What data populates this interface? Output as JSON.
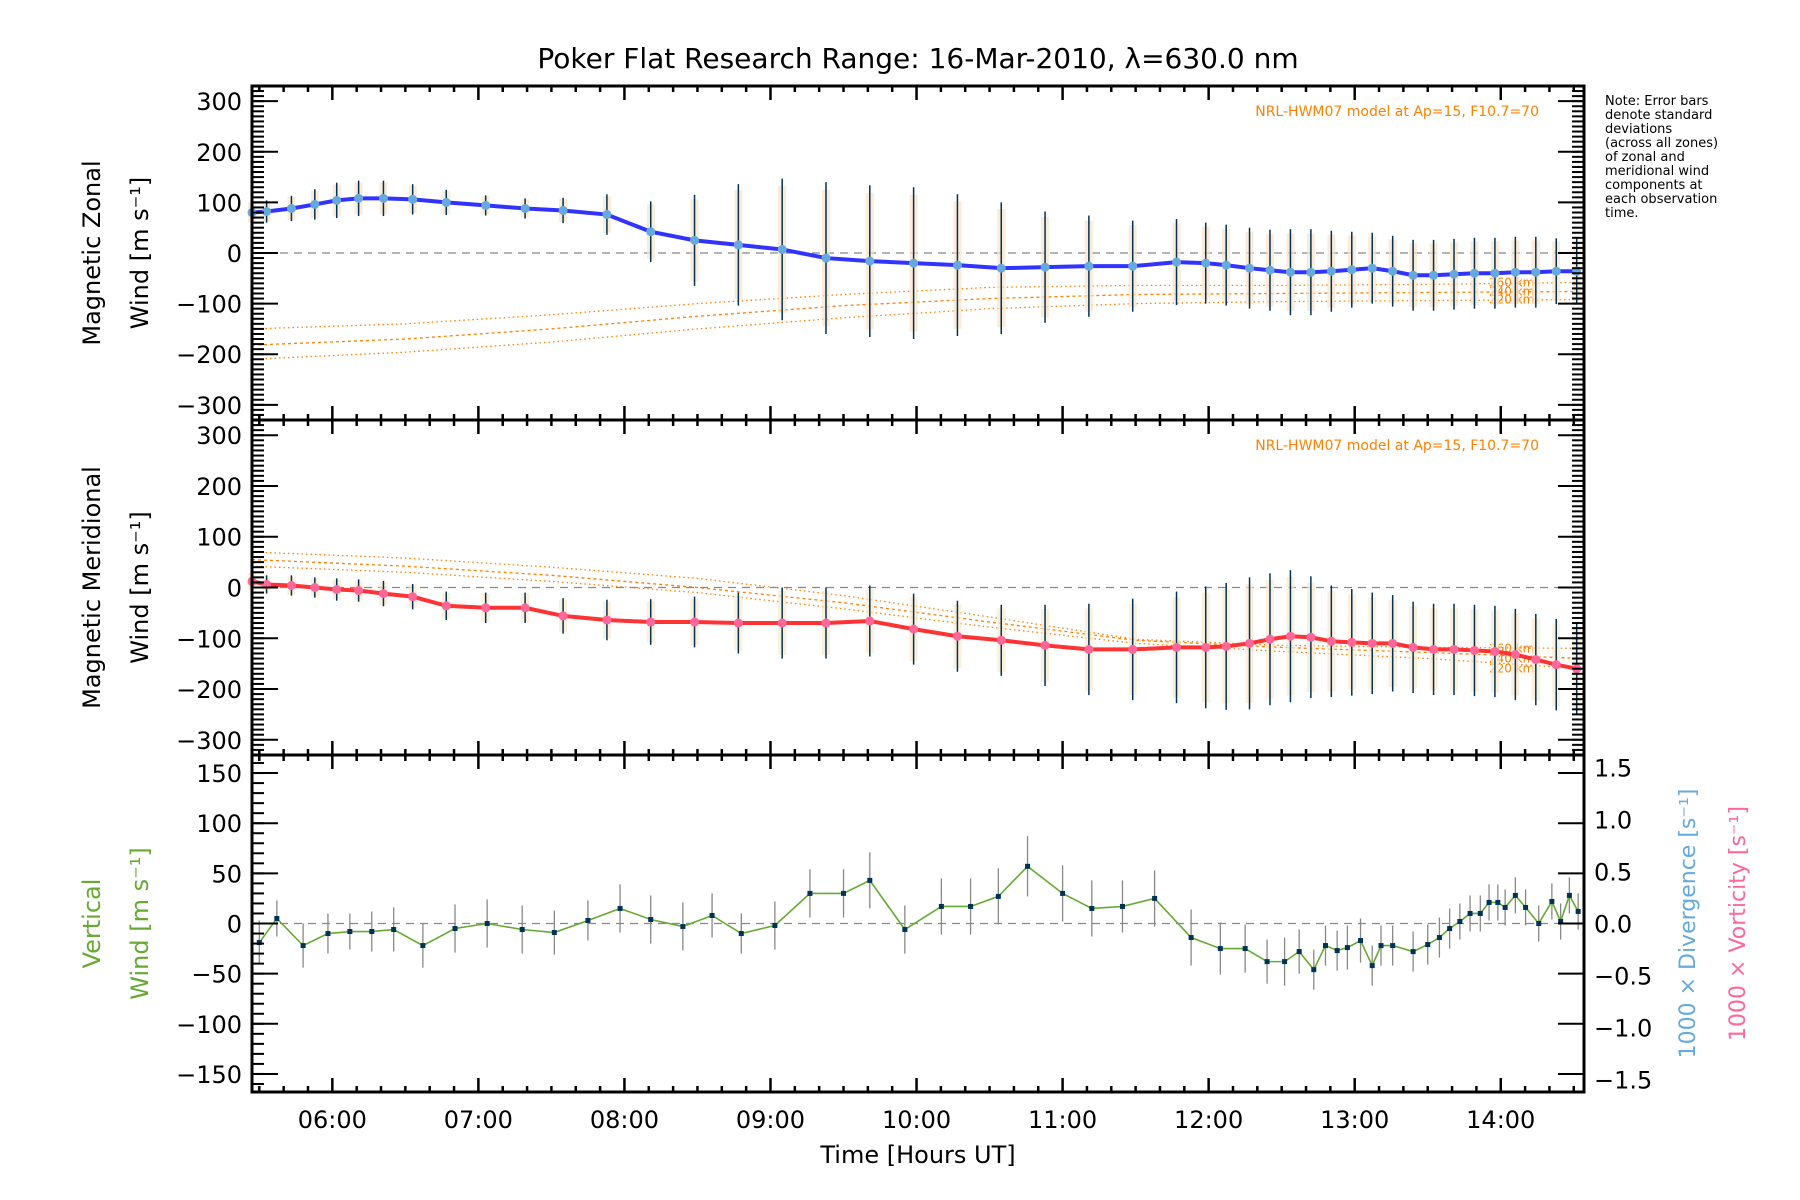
{
  "chart_data": {
    "type": "line",
    "title": "Poker Flat Research Range: 16-Mar-2010, λ=630.0 nm",
    "xlabel": "Time [Hours UT]",
    "xlim": [
      5.45,
      14.57
    ],
    "x_ticks": [
      {
        "value": 6,
        "label": "06:00"
      },
      {
        "value": 7,
        "label": "07:00"
      },
      {
        "value": 8,
        "label": "08:00"
      },
      {
        "value": 9,
        "label": "09:00"
      },
      {
        "value": 10,
        "label": "10:00"
      },
      {
        "value": 11,
        "label": "11:00"
      },
      {
        "value": 12,
        "label": "12:00"
      },
      {
        "value": 13,
        "label": "13:00"
      },
      {
        "value": 14,
        "label": "14:00"
      }
    ],
    "note": "Note: Error bars\ndenote standard\ndeviations\n(across all zones)\nof zonal and\nmeridional wind\ncomponents at\neach observation\ntime.",
    "panels": [
      {
        "id": "zonal",
        "ylabel_line1": "Magnetic Zonal",
        "ylabel_line2": "Wind [m s⁻¹]",
        "ylim": [
          -330,
          330
        ],
        "yticks": [
          -300,
          -200,
          -100,
          0,
          100,
          200,
          300
        ],
        "model_label": "NRL-HWM07 model at Ap=15, F10.7=70",
        "series": {
          "name": "Zonal wind",
          "color": "#3333ff",
          "x": [
            5.45,
            5.55,
            5.72,
            5.88,
            6.03,
            6.18,
            6.35,
            6.55,
            6.78,
            7.05,
            7.32,
            7.58,
            7.88,
            8.18,
            8.48,
            8.78,
            9.08,
            9.38,
            9.68,
            9.98,
            10.28,
            10.58,
            10.88,
            11.18,
            11.48,
            11.78,
            11.98,
            12.12,
            12.28,
            12.42,
            12.56,
            12.7,
            12.84,
            12.98,
            13.12,
            13.26,
            13.4,
            13.54,
            13.68,
            13.82,
            13.96,
            14.1,
            14.24,
            14.38,
            14.52
          ],
          "values": [
            80,
            82,
            88,
            96,
            104,
            108,
            108,
            106,
            100,
            94,
            88,
            84,
            76,
            42,
            25,
            16,
            7,
            -10,
            -16,
            -20,
            -24,
            -30,
            -28,
            -26,
            -26,
            -18,
            -20,
            -24,
            -30,
            -34,
            -38,
            -38,
            -36,
            -33,
            -30,
            -36,
            -44,
            -44,
            -42,
            -40,
            -40,
            -38,
            -38,
            -36,
            -36
          ],
          "errors": [
            22,
            22,
            25,
            30,
            35,
            35,
            35,
            30,
            25,
            20,
            20,
            25,
            40,
            60,
            90,
            120,
            140,
            150,
            150,
            150,
            140,
            130,
            110,
            100,
            90,
            85,
            80,
            80,
            80,
            80,
            85,
            85,
            80,
            75,
            70,
            70,
            70,
            70,
            70,
            70,
            70,
            70,
            70,
            65,
            65
          ]
        },
        "model_lines": [
          {
            "name": "260 km",
            "x": [
              5.45,
              6.5,
              7.5,
              8.5,
              9.5,
              10.5,
              11.5,
              12.5,
              13.5,
              14.57
            ],
            "values": [
              -150,
              -140,
              -122,
              -100,
              -82,
              -68,
              -64,
              -64,
              -62,
              -58
            ]
          },
          {
            "name": "240 km",
            "x": [
              5.45,
              6.5,
              7.5,
              8.5,
              9.5,
              10.5,
              11.5,
              12.5,
              13.5,
              14.57
            ],
            "values": [
              -182,
              -170,
              -150,
              -125,
              -104,
              -90,
              -82,
              -80,
              -78,
              -76
            ]
          },
          {
            "name": "220 km",
            "x": [
              5.45,
              6.5,
              7.5,
              8.5,
              9.5,
              10.5,
              11.5,
              12.5,
              13.5,
              14.57
            ],
            "values": [
              -210,
              -196,
              -176,
              -150,
              -128,
              -110,
              -100,
              -96,
              -94,
              -92
            ]
          }
        ]
      },
      {
        "id": "meridional",
        "ylabel_line1": "Magnetic Meridional",
        "ylabel_line2": "Wind [m s⁻¹]",
        "ylim": [
          -330,
          330
        ],
        "yticks": [
          -300,
          -200,
          -100,
          0,
          100,
          200,
          300
        ],
        "model_label": "NRL-HWM07 model at Ap=15, F10.7=70",
        "series": {
          "name": "Meridional wind",
          "color": "#ff3333",
          "x": [
            5.45,
            5.55,
            5.72,
            5.88,
            6.03,
            6.18,
            6.35,
            6.55,
            6.78,
            7.05,
            7.32,
            7.58,
            7.88,
            8.18,
            8.48,
            8.78,
            9.08,
            9.38,
            9.68,
            9.98,
            10.28,
            10.58,
            10.88,
            11.18,
            11.48,
            11.78,
            11.98,
            12.12,
            12.28,
            12.42,
            12.56,
            12.7,
            12.84,
            12.98,
            13.12,
            13.26,
            13.4,
            13.54,
            13.68,
            13.82,
            13.96,
            14.1,
            14.24,
            14.38,
            14.52
          ],
          "values": [
            12,
            6,
            4,
            0,
            -4,
            -6,
            -12,
            -18,
            -36,
            -40,
            -40,
            -56,
            -64,
            -68,
            -68,
            -70,
            -70,
            -70,
            -66,
            -82,
            -96,
            -104,
            -114,
            -122,
            -122,
            -118,
            -118,
            -116,
            -110,
            -102,
            -96,
            -98,
            -106,
            -108,
            -110,
            -110,
            -118,
            -122,
            -122,
            -124,
            -126,
            -132,
            -142,
            -152,
            -160
          ],
          "errors": [
            18,
            18,
            20,
            20,
            22,
            22,
            25,
            25,
            28,
            30,
            30,
            35,
            40,
            45,
            50,
            60,
            70,
            70,
            70,
            70,
            70,
            70,
            80,
            90,
            100,
            110,
            120,
            125,
            130,
            130,
            130,
            120,
            110,
            105,
            100,
            95,
            90,
            90,
            90,
            90,
            90,
            90,
            90,
            90,
            90
          ]
        },
        "model_lines": [
          {
            "name": "260 km",
            "x": [
              5.45,
              6.5,
              7.5,
              8.5,
              9.5,
              10.5,
              11.5,
              12.5,
              13.5,
              14.57
            ],
            "values": [
              70,
              58,
              40,
              18,
              -16,
              -58,
              -102,
              -114,
              -118,
              -120
            ]
          },
          {
            "name": "240 km",
            "x": [
              5.45,
              6.5,
              7.5,
              8.5,
              9.5,
              10.5,
              11.5,
              12.5,
              13.5,
              14.57
            ],
            "values": [
              55,
              42,
              24,
              0,
              -30,
              -68,
              -104,
              -118,
              -128,
              -140
            ]
          },
          {
            "name": "220 km",
            "x": [
              5.45,
              6.5,
              7.5,
              8.5,
              9.5,
              10.5,
              11.5,
              12.5,
              13.5,
              14.57
            ],
            "values": [
              42,
              30,
              12,
              -10,
              -42,
              -78,
              -110,
              -126,
              -140,
              -160
            ]
          }
        ]
      },
      {
        "id": "vertical",
        "ylabel_line1": "Vertical",
        "ylabel_line2": "Wind [m s⁻¹]",
        "ylabel_color": "#66aa33",
        "ylim": [
          -168,
          168
        ],
        "yticks": [
          -150,
          -100,
          -50,
          0,
          50,
          100,
          150
        ],
        "right_axis": {
          "ylim": [
            -1.62,
            1.62
          ],
          "yticks": [
            -1.5,
            -1.0,
            -0.5,
            0.0,
            0.5,
            1.0,
            1.5
          ],
          "tick_labels": [
            "−1.5",
            "−1.0",
            "−0.5",
            "0.0",
            "0.5",
            "1.0",
            "1.5"
          ],
          "label_divergence": "1000 × Divergence [s⁻¹]",
          "label_divergence_color": "#66aadd",
          "label_vorticity": "1000 × Vorticity [s⁻¹]",
          "label_vorticity_color": "#ff6699"
        },
        "series": {
          "name": "Vertical wind",
          "color": "#66aa33",
          "marker_color": "#003355",
          "x": [
            5.5,
            5.62,
            5.8,
            5.97,
            6.12,
            6.27,
            6.42,
            6.62,
            6.84,
            7.06,
            7.3,
            7.52,
            7.75,
            7.97,
            8.18,
            8.4,
            8.6,
            8.8,
            9.03,
            9.27,
            9.5,
            9.68,
            9.92,
            10.17,
            10.37,
            10.56,
            10.76,
            11.0,
            11.2,
            11.41,
            11.63,
            11.88,
            12.08,
            12.25,
            12.4,
            12.52,
            12.62,
            12.72,
            12.8,
            12.88,
            12.95,
            13.04,
            13.12,
            13.18,
            13.26,
            13.4,
            13.5,
            13.58,
            13.65,
            13.72,
            13.79,
            13.86,
            13.92,
            13.98,
            14.03,
            14.1,
            14.17,
            14.26,
            14.35,
            14.41,
            14.47,
            14.53
          ],
          "values": [
            -19,
            5,
            -22,
            -10,
            -8,
            -8,
            -6,
            -22,
            -5,
            0,
            -6,
            -9,
            3,
            15,
            4,
            -3,
            8,
            -10,
            -2,
            30,
            30,
            43,
            -6,
            17,
            17,
            27,
            57,
            30,
            15,
            17,
            25,
            -14,
            -25,
            -25,
            -38,
            -38,
            -28,
            -46,
            -22,
            -27,
            -24,
            -17,
            -42,
            -22,
            -22,
            -28,
            -21,
            -14,
            -5,
            2,
            10,
            10,
            21,
            21,
            16,
            28,
            16,
            0,
            22,
            2,
            28,
            12
          ],
          "errors": [
            22,
            18,
            22,
            20,
            18,
            20,
            22,
            22,
            24,
            24,
            24,
            22,
            20,
            24,
            24,
            24,
            22,
            20,
            24,
            24,
            24,
            28,
            24,
            28,
            28,
            28,
            30,
            28,
            28,
            26,
            28,
            28,
            26,
            24,
            22,
            24,
            22,
            20,
            20,
            20,
            22,
            22,
            20,
            20,
            20,
            20,
            20,
            20,
            20,
            18,
            18,
            18,
            18,
            18,
            18,
            18,
            18,
            18,
            18,
            18,
            18,
            18
          ]
        }
      }
    ],
    "zero_line": {
      "style": "dashed",
      "color": "#888888"
    },
    "grid": false
  }
}
